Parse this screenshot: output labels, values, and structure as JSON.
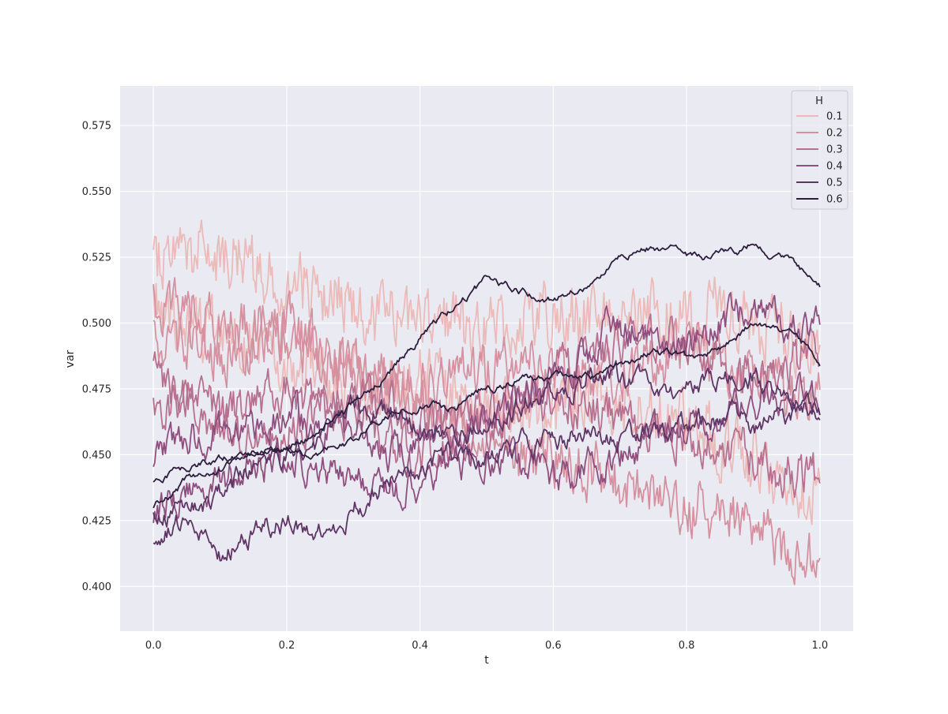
{
  "chart_data": {
    "type": "line",
    "title": "",
    "xlabel": "t",
    "ylabel": "var",
    "xlim": [
      -0.05,
      1.05
    ],
    "ylim": [
      0.383,
      0.59
    ],
    "xticks": [
      0.0,
      0.2,
      0.4,
      0.6,
      0.8,
      1.0
    ],
    "xtick_labels": [
      "0.0",
      "0.2",
      "0.4",
      "0.6",
      "0.8",
      "1.0"
    ],
    "yticks": [
      0.4,
      0.425,
      0.45,
      0.475,
      0.5,
      0.525,
      0.55,
      0.575
    ],
    "ytick_labels": [
      "0.400",
      "0.425",
      "0.450",
      "0.475",
      "0.500",
      "0.525",
      "0.550",
      "0.575"
    ],
    "grid": true,
    "legend": {
      "title": "H",
      "placement": "top-right",
      "entries": [
        "0.1",
        "0.2",
        "0.3",
        "0.4",
        "0.5",
        "0.6"
      ]
    },
    "series_colors": [
      "#ebbab9",
      "#d591a0",
      "#b8708f",
      "#8e4f7e",
      "#5e3565",
      "#2d1e3e"
    ],
    "series": [
      {
        "name": "0.1",
        "color": "#ebbab9",
        "x": [
          0,
          0.05,
          0.1,
          0.15,
          0.2,
          0.25,
          0.3,
          0.35,
          0.4,
          0.45,
          0.5,
          0.55,
          0.6,
          0.65,
          0.7,
          0.75,
          0.8,
          0.85,
          0.9,
          0.95,
          1.0
        ],
        "y": [
          0.525,
          0.53,
          0.525,
          0.52,
          0.518,
          0.51,
          0.505,
          0.5,
          0.505,
          0.5,
          0.498,
          0.5,
          0.505,
          0.5,
          0.502,
          0.505,
          0.5,
          0.505,
          0.5,
          0.495,
          0.49
        ]
      },
      {
        "name": "0.1",
        "color": "#ebbab9",
        "x": [
          0,
          0.05,
          0.1,
          0.15,
          0.2,
          0.25,
          0.3,
          0.35,
          0.4,
          0.45,
          0.5,
          0.55,
          0.6,
          0.65,
          0.7,
          0.75,
          0.8,
          0.85,
          0.9,
          0.95,
          1.0
        ],
        "y": [
          0.51,
          0.5,
          0.495,
          0.49,
          0.488,
          0.482,
          0.48,
          0.475,
          0.478,
          0.475,
          0.47,
          0.468,
          0.465,
          0.47,
          0.468,
          0.465,
          0.46,
          0.455,
          0.45,
          0.44,
          0.435
        ]
      },
      {
        "name": "0.2",
        "color": "#d591a0",
        "x": [
          0,
          0.05,
          0.1,
          0.15,
          0.2,
          0.25,
          0.3,
          0.35,
          0.4,
          0.45,
          0.5,
          0.55,
          0.6,
          0.65,
          0.7,
          0.75,
          0.8,
          0.85,
          0.9,
          0.95,
          1.0
        ],
        "y": [
          0.51,
          0.505,
          0.5,
          0.498,
          0.5,
          0.49,
          0.485,
          0.478,
          0.47,
          0.462,
          0.455,
          0.448,
          0.45,
          0.445,
          0.44,
          0.435,
          0.43,
          0.428,
          0.425,
          0.415,
          0.412
        ]
      },
      {
        "name": "0.2",
        "color": "#d591a0",
        "x": [
          0,
          0.05,
          0.1,
          0.15,
          0.2,
          0.25,
          0.3,
          0.35,
          0.4,
          0.45,
          0.5,
          0.55,
          0.6,
          0.65,
          0.7,
          0.75,
          0.8,
          0.85,
          0.9,
          0.95,
          1.0
        ],
        "y": [
          0.495,
          0.49,
          0.488,
          0.49,
          0.495,
          0.49,
          0.48,
          0.475,
          0.478,
          0.48,
          0.482,
          0.485,
          0.48,
          0.478,
          0.48,
          0.485,
          0.49,
          0.485,
          0.48,
          0.475,
          0.47
        ]
      },
      {
        "name": "0.3",
        "color": "#b8708f",
        "x": [
          0,
          0.05,
          0.1,
          0.15,
          0.2,
          0.25,
          0.3,
          0.35,
          0.4,
          0.45,
          0.5,
          0.55,
          0.6,
          0.65,
          0.7,
          0.75,
          0.8,
          0.85,
          0.9,
          0.95,
          1.0
        ],
        "y": [
          0.48,
          0.47,
          0.46,
          0.455,
          0.46,
          0.465,
          0.47,
          0.468,
          0.462,
          0.46,
          0.465,
          0.47,
          0.472,
          0.468,
          0.465,
          0.46,
          0.458,
          0.455,
          0.45,
          0.445,
          0.44
        ]
      },
      {
        "name": "0.3",
        "color": "#b8708f",
        "x": [
          0,
          0.05,
          0.1,
          0.15,
          0.2,
          0.25,
          0.3,
          0.35,
          0.4,
          0.45,
          0.5,
          0.55,
          0.6,
          0.65,
          0.7,
          0.75,
          0.8,
          0.85,
          0.9,
          0.95,
          1.0
        ],
        "y": [
          0.465,
          0.47,
          0.465,
          0.47,
          0.475,
          0.47,
          0.465,
          0.455,
          0.45,
          0.455,
          0.46,
          0.47,
          0.48,
          0.485,
          0.49,
          0.495,
          0.49,
          0.485,
          0.48,
          0.485,
          0.49
        ]
      },
      {
        "name": "0.4",
        "color": "#8e4f7e",
        "x": [
          0,
          0.05,
          0.1,
          0.15,
          0.2,
          0.25,
          0.3,
          0.35,
          0.4,
          0.45,
          0.5,
          0.55,
          0.6,
          0.65,
          0.7,
          0.75,
          0.8,
          0.85,
          0.9,
          0.95,
          1.0
        ],
        "y": [
          0.45,
          0.455,
          0.46,
          0.462,
          0.465,
          0.46,
          0.455,
          0.45,
          0.455,
          0.46,
          0.465,
          0.47,
          0.478,
          0.49,
          0.5,
          0.495,
          0.49,
          0.5,
          0.505,
          0.5,
          0.498
        ]
      },
      {
        "name": "0.4",
        "color": "#8e4f7e",
        "x": [
          0,
          0.05,
          0.1,
          0.15,
          0.2,
          0.25,
          0.3,
          0.35,
          0.4,
          0.45,
          0.5,
          0.55,
          0.6,
          0.65,
          0.7,
          0.75,
          0.8,
          0.85,
          0.9,
          0.95,
          1.0
        ],
        "y": [
          0.428,
          0.435,
          0.44,
          0.445,
          0.45,
          0.445,
          0.44,
          0.435,
          0.44,
          0.445,
          0.45,
          0.445,
          0.44,
          0.445,
          0.45,
          0.455,
          0.46,
          0.465,
          0.47,
          0.475,
          0.47
        ]
      },
      {
        "name": "0.5",
        "color": "#5e3565",
        "x": [
          0,
          0.05,
          0.1,
          0.15,
          0.2,
          0.25,
          0.3,
          0.35,
          0.4,
          0.45,
          0.5,
          0.55,
          0.6,
          0.65,
          0.7,
          0.75,
          0.8,
          0.85,
          0.9,
          0.95,
          1.0
        ],
        "y": [
          0.43,
          0.428,
          0.435,
          0.445,
          0.45,
          0.455,
          0.47,
          0.465,
          0.46,
          0.455,
          0.46,
          0.47,
          0.475,
          0.48,
          0.478,
          0.472,
          0.475,
          0.48,
          0.478,
          0.475,
          0.466
        ]
      },
      {
        "name": "0.5",
        "color": "#5e3565",
        "x": [
          0,
          0.05,
          0.1,
          0.15,
          0.2,
          0.25,
          0.3,
          0.35,
          0.4,
          0.45,
          0.5,
          0.55,
          0.6,
          0.65,
          0.7,
          0.75,
          0.8,
          0.85,
          0.9,
          0.95,
          1.0
        ],
        "y": [
          0.418,
          0.425,
          0.412,
          0.42,
          0.425,
          0.42,
          0.43,
          0.44,
          0.445,
          0.45,
          0.448,
          0.452,
          0.455,
          0.46,
          0.455,
          0.458,
          0.462,
          0.465,
          0.46,
          0.465,
          0.47
        ]
      },
      {
        "name": "0.6",
        "color": "#2d1e3e",
        "x": [
          0,
          0.05,
          0.1,
          0.15,
          0.2,
          0.25,
          0.3,
          0.35,
          0.4,
          0.45,
          0.5,
          0.55,
          0.6,
          0.65,
          0.7,
          0.75,
          0.8,
          0.85,
          0.9,
          0.95,
          1.0
        ],
        "y": [
          0.44,
          0.445,
          0.448,
          0.452,
          0.455,
          0.46,
          0.47,
          0.48,
          0.495,
          0.505,
          0.515,
          0.512,
          0.51,
          0.515,
          0.525,
          0.53,
          0.525,
          0.525,
          0.53,
          0.525,
          0.514
        ]
      },
      {
        "name": "0.6",
        "color": "#2d1e3e",
        "x": [
          0,
          0.05,
          0.1,
          0.15,
          0.2,
          0.25,
          0.3,
          0.35,
          0.4,
          0.45,
          0.5,
          0.55,
          0.6,
          0.65,
          0.7,
          0.75,
          0.8,
          0.85,
          0.9,
          0.95,
          1.0
        ],
        "y": [
          0.43,
          0.44,
          0.445,
          0.45,
          0.452,
          0.45,
          0.455,
          0.465,
          0.47,
          0.468,
          0.475,
          0.478,
          0.48,
          0.478,
          0.482,
          0.49,
          0.485,
          0.49,
          0.5,
          0.495,
          0.486
        ]
      }
    ]
  }
}
